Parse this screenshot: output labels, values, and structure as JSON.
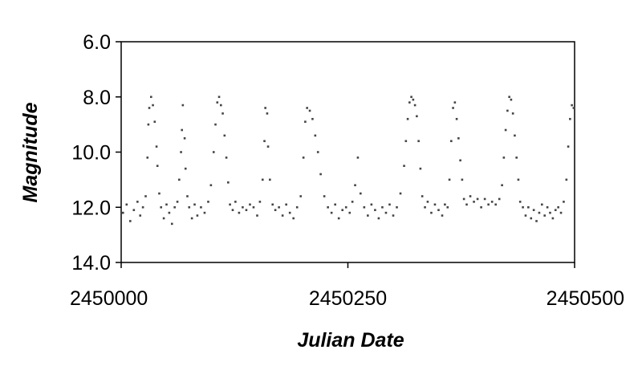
{
  "chart_data": {
    "type": "scatter",
    "title": "",
    "xlabel": "Julian Date",
    "ylabel": "Magnitude",
    "xlim": [
      2450000,
      2450500
    ],
    "ylim": [
      6.0,
      14.0
    ],
    "y_inverted": true,
    "x_ticks": [
      "2450000",
      "2450250",
      "2450500"
    ],
    "y_ticks": [
      "6.0",
      "8.0",
      "10.0",
      "12.0",
      "14.0"
    ],
    "grid": false,
    "legend": "none",
    "marker_color": "#444444",
    "series": [
      {
        "points": [
          [
            2450002,
            12.2
          ],
          [
            2450006,
            11.9
          ],
          [
            2450010,
            12.5
          ],
          [
            2450014,
            12.1
          ],
          [
            2450018,
            11.8
          ],
          [
            2450021,
            12.3
          ],
          [
            2450024,
            12.0
          ],
          [
            2450027,
            11.6
          ],
          [
            2450029,
            10.2
          ],
          [
            2450030,
            9.0
          ],
          [
            2450031,
            8.4
          ],
          [
            2450033,
            8.0
          ],
          [
            2450035,
            8.3
          ],
          [
            2450037,
            8.9
          ],
          [
            2450039,
            9.8
          ],
          [
            2450040,
            10.5
          ],
          [
            2450042,
            11.5
          ],
          [
            2450044,
            12.0
          ],
          [
            2450047,
            12.4
          ],
          [
            2450050,
            11.9
          ],
          [
            2450053,
            12.2
          ],
          [
            2450056,
            12.6
          ],
          [
            2450059,
            12.0
          ],
          [
            2450062,
            11.8
          ],
          [
            2450064,
            11.0
          ],
          [
            2450066,
            10.0
          ],
          [
            2450067,
            9.2
          ],
          [
            2450068,
            8.3
          ],
          [
            2450070,
            9.5
          ],
          [
            2450071,
            10.6
          ],
          [
            2450073,
            11.6
          ],
          [
            2450075,
            12.0
          ],
          [
            2450078,
            12.4
          ],
          [
            2450081,
            11.9
          ],
          [
            2450084,
            12.3
          ],
          [
            2450088,
            12.0
          ],
          [
            2450092,
            12.2
          ],
          [
            2450096,
            11.8
          ],
          [
            2450099,
            11.2
          ],
          [
            2450102,
            10.0
          ],
          [
            2450104,
            9.0
          ],
          [
            2450106,
            8.2
          ],
          [
            2450108,
            8.0
          ],
          [
            2450110,
            8.3
          ],
          [
            2450112,
            8.6
          ],
          [
            2450114,
            9.4
          ],
          [
            2450116,
            10.2
          ],
          [
            2450118,
            11.1
          ],
          [
            2450120,
            11.9
          ],
          [
            2450123,
            12.1
          ],
          [
            2450126,
            11.8
          ],
          [
            2450130,
            12.2
          ],
          [
            2450134,
            12.0
          ],
          [
            2450138,
            12.1
          ],
          [
            2450142,
            11.9
          ],
          [
            2450146,
            12.0
          ],
          [
            2450150,
            12.3
          ],
          [
            2450153,
            11.8
          ],
          [
            2450156,
            11.0
          ],
          [
            2450158,
            9.6
          ],
          [
            2450159,
            8.4
          ],
          [
            2450161,
            8.6
          ],
          [
            2450162,
            9.8
          ],
          [
            2450164,
            11.0
          ],
          [
            2450167,
            11.9
          ],
          [
            2450170,
            12.1
          ],
          [
            2450174,
            12.0
          ],
          [
            2450178,
            12.3
          ],
          [
            2450182,
            11.9
          ],
          [
            2450186,
            12.2
          ],
          [
            2450190,
            12.4
          ],
          [
            2450194,
            12.0
          ],
          [
            2450198,
            11.6
          ],
          [
            2450201,
            10.2
          ],
          [
            2450203,
            8.9
          ],
          [
            2450205,
            8.4
          ],
          [
            2450208,
            8.5
          ],
          [
            2450211,
            8.8
          ],
          [
            2450214,
            9.4
          ],
          [
            2450217,
            10.0
          ],
          [
            2450220,
            10.8
          ],
          [
            2450224,
            11.6
          ],
          [
            2450228,
            12.0
          ],
          [
            2450232,
            12.2
          ],
          [
            2450236,
            11.9
          ],
          [
            2450240,
            12.4
          ],
          [
            2450244,
            12.1
          ],
          [
            2450248,
            12.0
          ],
          [
            2450252,
            12.2
          ],
          [
            2450255,
            11.8
          ],
          [
            2450258,
            11.2
          ],
          [
            2450261,
            10.2
          ],
          [
            2450264,
            11.5
          ],
          [
            2450268,
            12.0
          ],
          [
            2450272,
            12.3
          ],
          [
            2450276,
            11.9
          ],
          [
            2450280,
            12.1
          ],
          [
            2450284,
            12.4
          ],
          [
            2450288,
            12.0
          ],
          [
            2450292,
            12.2
          ],
          [
            2450296,
            11.9
          ],
          [
            2450300,
            12.3
          ],
          [
            2450304,
            12.0
          ],
          [
            2450308,
            11.5
          ],
          [
            2450312,
            10.5
          ],
          [
            2450314,
            9.6
          ],
          [
            2450316,
            8.8
          ],
          [
            2450318,
            8.2
          ],
          [
            2450320,
            8.0
          ],
          [
            2450322,
            8.1
          ],
          [
            2450324,
            8.3
          ],
          [
            2450326,
            8.7
          ],
          [
            2450328,
            9.6
          ],
          [
            2450330,
            10.6
          ],
          [
            2450332,
            11.6
          ],
          [
            2450335,
            12.0
          ],
          [
            2450338,
            11.8
          ],
          [
            2450342,
            12.2
          ],
          [
            2450346,
            11.9
          ],
          [
            2450350,
            12.1
          ],
          [
            2450354,
            12.3
          ],
          [
            2450357,
            11.9
          ],
          [
            2450360,
            12.0
          ],
          [
            2450362,
            11.0
          ],
          [
            2450364,
            9.6
          ],
          [
            2450366,
            8.4
          ],
          [
            2450368,
            8.2
          ],
          [
            2450370,
            8.8
          ],
          [
            2450372,
            9.5
          ],
          [
            2450374,
            10.3
          ],
          [
            2450376,
            11.0
          ],
          [
            2450378,
            11.7
          ],
          [
            2450381,
            11.9
          ],
          [
            2450385,
            11.6
          ],
          [
            2450389,
            11.8
          ],
          [
            2450393,
            11.7
          ],
          [
            2450397,
            12.0
          ],
          [
            2450401,
            11.7
          ],
          [
            2450405,
            11.9
          ],
          [
            2450409,
            11.8
          ],
          [
            2450413,
            11.9
          ],
          [
            2450417,
            11.7
          ],
          [
            2450420,
            11.2
          ],
          [
            2450422,
            10.2
          ],
          [
            2450424,
            9.2
          ],
          [
            2450426,
            8.5
          ],
          [
            2450428,
            8.0
          ],
          [
            2450430,
            8.1
          ],
          [
            2450432,
            8.6
          ],
          [
            2450434,
            9.4
          ],
          [
            2450436,
            10.2
          ],
          [
            2450438,
            11.0
          ],
          [
            2450440,
            11.8
          ],
          [
            2450443,
            12.0
          ],
          [
            2450446,
            12.3
          ],
          [
            2450449,
            12.0
          ],
          [
            2450452,
            12.4
          ],
          [
            2450455,
            12.1
          ],
          [
            2450458,
            12.5
          ],
          [
            2450461,
            12.2
          ],
          [
            2450464,
            11.9
          ],
          [
            2450467,
            12.3
          ],
          [
            2450470,
            12.0
          ],
          [
            2450473,
            12.2
          ],
          [
            2450476,
            12.4
          ],
          [
            2450479,
            12.1
          ],
          [
            2450482,
            12.0
          ],
          [
            2450485,
            12.2
          ],
          [
            2450488,
            11.8
          ],
          [
            2450491,
            11.0
          ],
          [
            2450493,
            9.8
          ],
          [
            2450495,
            8.8
          ],
          [
            2450497,
            8.3
          ],
          [
            2450499,
            8.4
          ]
        ]
      }
    ]
  }
}
